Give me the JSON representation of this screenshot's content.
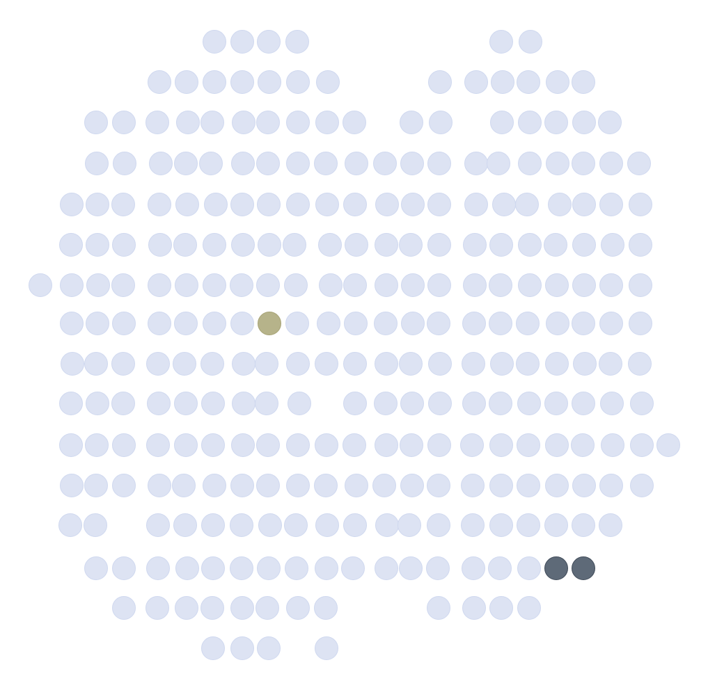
{
  "colors": {
    "default_dot": "#dde3f3",
    "olive_dot": "#b6b38a",
    "slate_dot": "#5e6a78"
  },
  "highlights": {
    "olive_count": 1,
    "slate_count": 2
  }
}
